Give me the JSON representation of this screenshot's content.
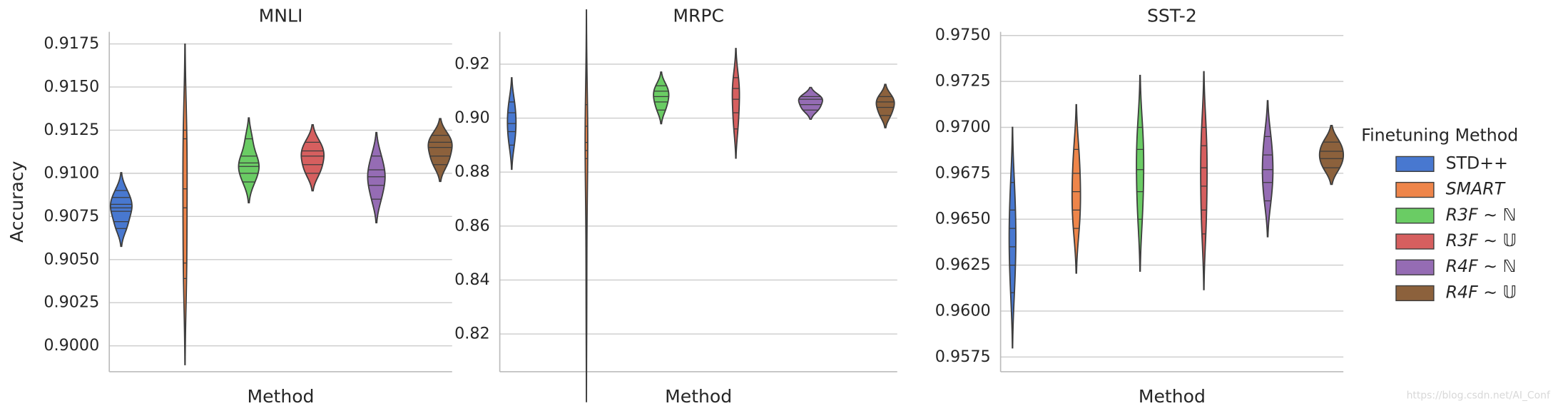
{
  "chart_data": [
    {
      "type": "violin",
      "title": "MNLI",
      "xlabel": "Method",
      "ylabel": "Accuracy",
      "legend_title": "Finetuning Method",
      "legend": "right",
      "ylim": [
        0.8985,
        0.9182
      ],
      "yticks": [
        {
          "value": 0.9,
          "label": "0.9000"
        },
        0.9025,
        {
          "value": 0.905,
          "label": "0.9050"
        },
        0.9075,
        {
          "value": 0.91,
          "label": "0.9100"
        },
        0.9125,
        {
          "value": 0.915,
          "label": "0.9150"
        },
        0.9175
      ],
      "grid": true,
      "series": [
        {
          "name": "STD++",
          "color": "#4878d0",
          "values": [
            0.9068,
            0.9072,
            0.9078,
            0.908,
            0.9082,
            0.9086,
            0.909
          ]
        },
        {
          "name": "SMART",
          "color": "#ee854a",
          "values": [
            0.9039,
            0.9048,
            0.908,
            0.9091,
            0.912,
            0.9125
          ]
        },
        {
          "name": "R3F ∼ ℕ",
          "color": "#6acc64",
          "values": [
            0.9095,
            0.91,
            0.9104,
            0.9106,
            0.911,
            0.912
          ]
        },
        {
          "name": "R3F ∼ 𝕌",
          "color": "#d65f5f",
          "values": [
            0.91,
            0.9105,
            0.911,
            0.9113,
            0.9118
          ]
        },
        {
          "name": "R4F ∼ ℕ",
          "color": "#956cb4",
          "values": [
            0.9085,
            0.9093,
            0.9098,
            0.9102,
            0.911
          ]
        },
        {
          "name": "R4F ∼ 𝕌",
          "color": "#8c613c",
          "values": [
            0.9105,
            0.911,
            0.9115,
            0.9118,
            0.9122
          ]
        }
      ]
    },
    {
      "type": "violin",
      "title": "MRPC",
      "xlabel": "Method",
      "ylim": [
        0.806,
        0.932
      ],
      "yticks": [
        0.82,
        0.84,
        0.86,
        0.88,
        {
          "value": 0.9,
          "label": "0.90"
        },
        0.92
      ],
      "grid": true,
      "series": [
        {
          "name": "STD++",
          "color": "#4878d0",
          "values": [
            0.89,
            0.895,
            0.898,
            0.902,
            0.906
          ]
        },
        {
          "name": "SMART",
          "color": "#ee854a",
          "values": [
            0.83,
            0.86,
            0.885,
            0.888,
            0.891,
            0.897,
            0.905
          ]
        },
        {
          "name": "R3F ∼ ℕ",
          "color": "#6acc64",
          "values": [
            0.903,
            0.906,
            0.908,
            0.91,
            0.912
          ]
        },
        {
          "name": "R3F ∼ 𝕌",
          "color": "#d65f5f",
          "values": [
            0.896,
            0.902,
            0.907,
            0.911,
            0.915
          ]
        },
        {
          "name": "R4F ∼ ℕ",
          "color": "#956cb4",
          "values": [
            0.903,
            0.905,
            0.907,
            0.908
          ]
        },
        {
          "name": "R4F ∼ 𝕌",
          "color": "#8c613c",
          "values": [
            0.901,
            0.904,
            0.906,
            0.908
          ]
        }
      ]
    },
    {
      "type": "violin",
      "title": "SST-2",
      "xlabel": "Method",
      "ylim": [
        0.9567,
        0.9752
      ],
      "yticks": [
        0.9575,
        {
          "value": 0.96,
          "label": "0.9600"
        },
        0.9625,
        {
          "value": 0.965,
          "label": "0.9650"
        },
        0.9675,
        {
          "value": 0.97,
          "label": "0.9700"
        },
        0.9725,
        {
          "value": 0.975,
          "label": "0.9750"
        }
      ],
      "grid": true,
      "series": [
        {
          "name": "STD++",
          "color": "#4878d0",
          "values": [
            0.961,
            0.9625,
            0.9635,
            0.9645,
            0.9655,
            0.967
          ]
        },
        {
          "name": "SMART",
          "color": "#ee854a",
          "values": [
            0.9645,
            0.9655,
            0.9665,
            0.9675,
            0.9688
          ]
        },
        {
          "name": "R3F ∼ ℕ",
          "color": "#6acc64",
          "values": [
            0.965,
            0.9665,
            0.9677,
            0.9688,
            0.97
          ]
        },
        {
          "name": "R3F ∼ 𝕌",
          "color": "#d65f5f",
          "values": [
            0.9642,
            0.9655,
            0.9668,
            0.9678,
            0.969,
            0.97
          ]
        },
        {
          "name": "R4F ∼ ℕ",
          "color": "#956cb4",
          "values": [
            0.966,
            0.967,
            0.9677,
            0.9685,
            0.9695
          ]
        },
        {
          "name": "R4F ∼ 𝕌",
          "color": "#8c613c",
          "values": [
            0.9678,
            0.9683,
            0.9687,
            0.9692
          ]
        }
      ]
    }
  ],
  "watermark": "https://blog.csdn.net/AI_Conf"
}
